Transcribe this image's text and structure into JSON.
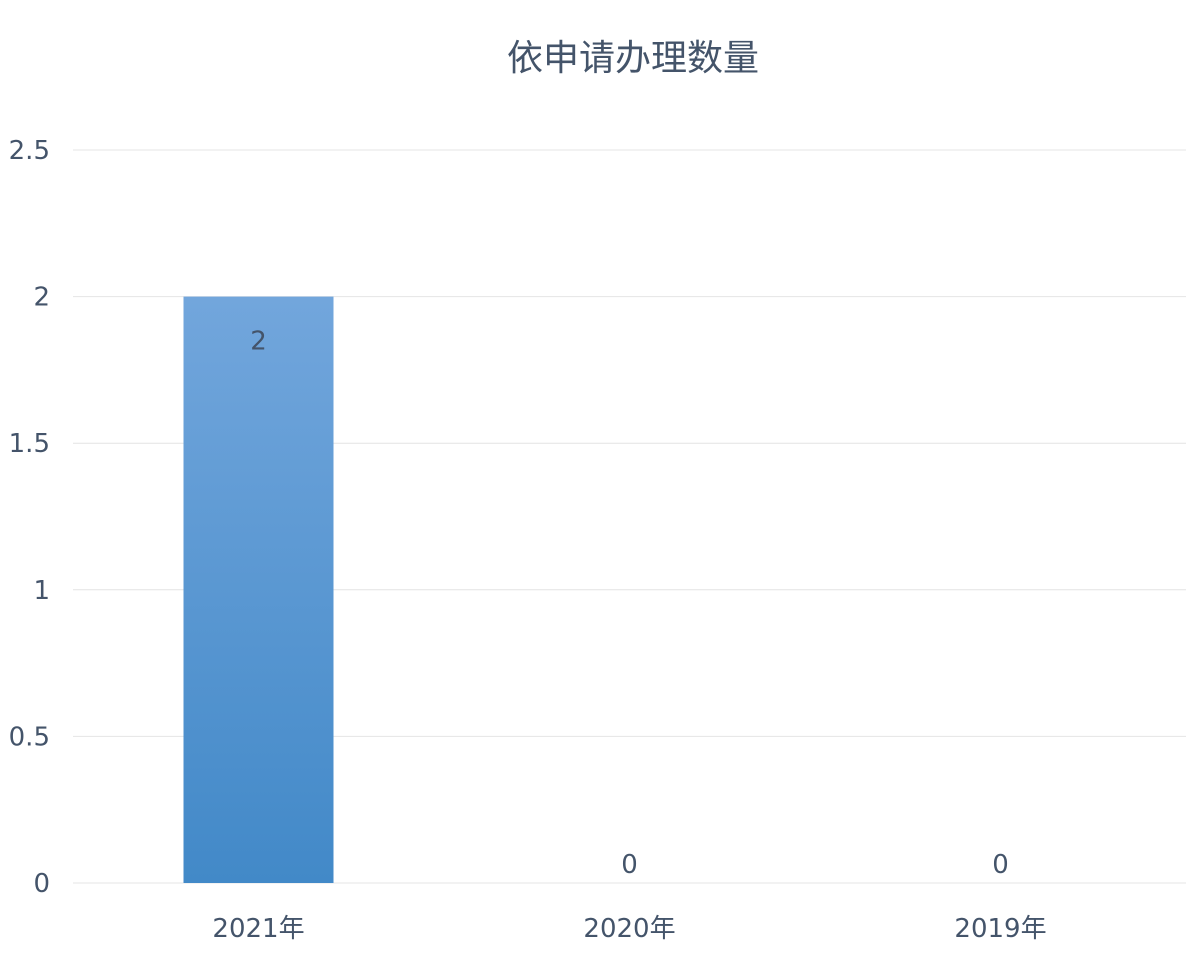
{
  "chart_data": {
    "type": "bar",
    "title": "依申请办理数量",
    "categories": [
      "2021年",
      "2020年",
      "2019年"
    ],
    "values": [
      2,
      0,
      0
    ],
    "data_labels": [
      "2",
      "0",
      "0"
    ],
    "xlabel": "",
    "ylabel": "",
    "ylim": [
      0,
      2.5
    ],
    "yticks": [
      "0",
      "0.5",
      "1",
      "1.5",
      "2",
      "2.5"
    ],
    "grid": true,
    "legend": "none",
    "colors": {
      "bar_top": "#72a6dc",
      "bar_bottom": "#4289c8",
      "text": "#44546a",
      "grid": "#e4e4e4"
    }
  }
}
